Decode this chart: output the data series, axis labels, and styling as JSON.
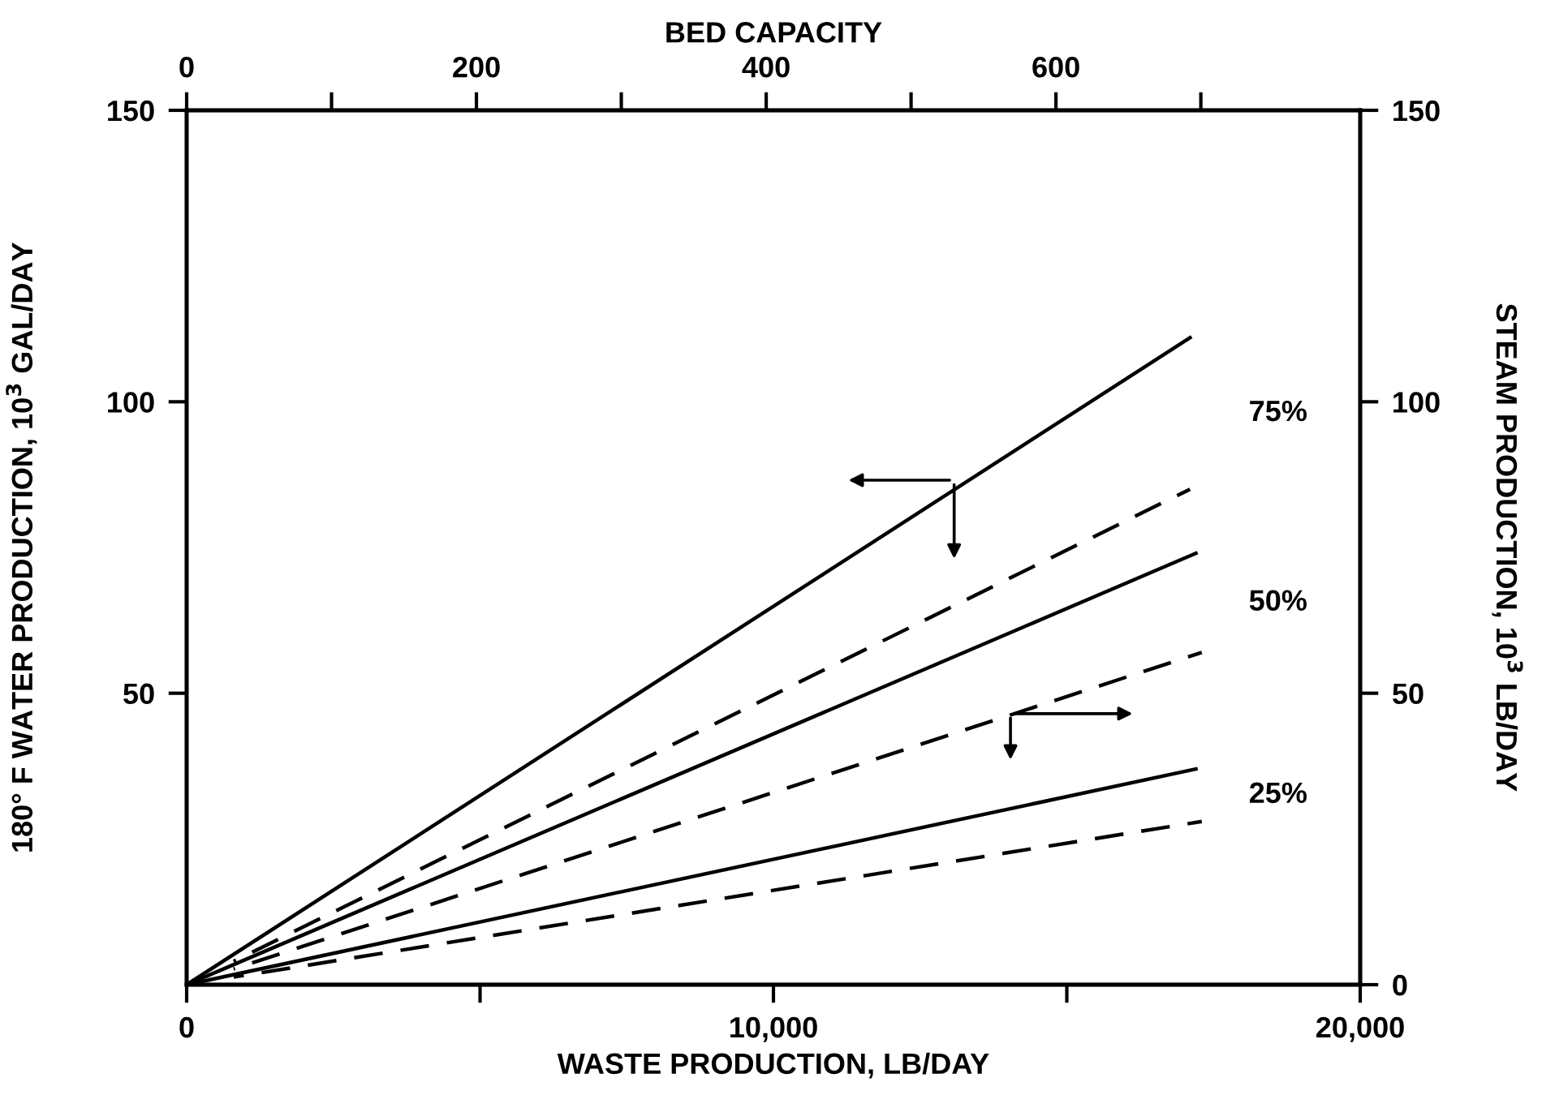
{
  "chart_data": {
    "type": "line",
    "xlabel": "WASTE PRODUCTION, LB/DAY",
    "ylabel": "180° F WATER PRODUCTION, 10$^{3}$ GAL/DAY",
    "y2label": "STEAM PRODUCTION, 10$^{3}$ LB/DAY",
    "x2label": "BED CAPACITY",
    "xlim": [
      0,
      20000
    ],
    "xticks": [
      0,
      {
        "value": 5000,
        "label": null
      },
      {
        "value": 10000,
        "label": "10,000"
      },
      {
        "value": 15000,
        "label": null
      },
      {
        "value": 20000,
        "label": "20,000"
      }
    ],
    "x2lim": [
      0,
      810
    ],
    "x2ticks": [
      0,
      {
        "value": 100,
        "label": null
      },
      200,
      {
        "value": 300,
        "label": null
      },
      400,
      {
        "value": 500,
        "label": null
      },
      600,
      {
        "value": 700,
        "label": null
      }
    ],
    "ylim": [
      0,
      150
    ],
    "yticks": [
      50,
      100,
      150
    ],
    "y2lim": [
      0,
      150
    ],
    "y2ticks": [
      0,
      50,
      100,
      150
    ],
    "grid": false,
    "marker": "none",
    "series": [
      {
        "color": "#000000",
        "line_style": "solid",
        "x": [
          0,
          17100
        ],
        "values": [
          0,
          111
        ]
      },
      {
        "color": "#000000",
        "line_style": "dashed",
        "x": [
          800,
          17100
        ],
        "values": [
          4,
          85
        ]
      },
      {
        "color": "#000000",
        "line_style": "solid",
        "x": [
          0,
          17200
        ],
        "values": [
          0,
          74
        ]
      },
      {
        "color": "#000000",
        "line_style": "dashed",
        "x": [
          800,
          17300
        ],
        "values": [
          2.7,
          57
        ]
      },
      {
        "color": "#000000",
        "line_style": "solid",
        "x": [
          0,
          17200
        ],
        "values": [
          0,
          37
        ]
      },
      {
        "color": "#000000",
        "line_style": "dashed",
        "x": [
          800,
          17300
        ],
        "values": [
          1.3,
          28
        ]
      }
    ],
    "annotations": [
      "75%",
      "50%",
      "25%"
    ]
  }
}
